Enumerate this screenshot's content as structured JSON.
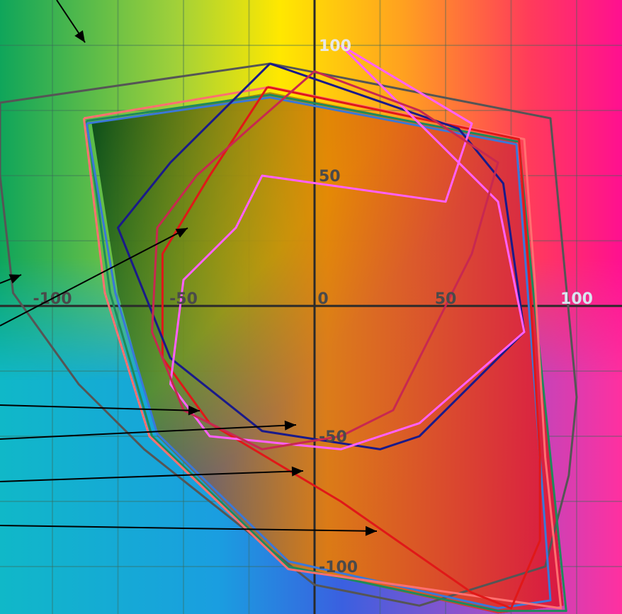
{
  "chart_data": {
    "type": "line",
    "title": "",
    "xlabel": "",
    "ylabel": "",
    "xlim": [
      -120,
      120
    ],
    "ylim": [
      -118,
      118
    ],
    "grid": true,
    "x_tick_labels": [
      {
        "value": -100,
        "label": "-100"
      },
      {
        "value": -50,
        "label": "-50"
      },
      {
        "value": 0,
        "label": "0"
      },
      {
        "value": 50,
        "label": "50"
      },
      {
        "value": 100,
        "label": "100"
      }
    ],
    "y_tick_labels": [
      {
        "value": 100,
        "label": "100"
      },
      {
        "value": 50,
        "label": "50"
      },
      {
        "value": -50,
        "label": "-50"
      },
      {
        "value": -100,
        "label": "-100"
      }
    ],
    "filled_gamut": {
      "color": "#1a3a80",
      "points": [
        [
          -85,
          70
        ],
        [
          -17,
          82
        ],
        [
          77,
          63
        ],
        [
          83,
          10
        ],
        [
          90,
          -58
        ],
        [
          95,
          -115
        ],
        [
          70,
          -118
        ],
        [
          -10,
          -100
        ],
        [
          -60,
          -50
        ],
        [
          -75,
          5
        ],
        [
          -85,
          70
        ]
      ]
    },
    "series": [
      {
        "color": "#555555",
        "points": [
          [
            -120,
            78
          ],
          [
            -17,
            93
          ],
          [
            90,
            72
          ],
          [
            100,
            -35
          ],
          [
            97,
            -65
          ],
          [
            88,
            -100
          ],
          [
            40,
            -115
          ],
          [
            0,
            -107
          ],
          [
            -65,
            -55
          ],
          [
            -90,
            -30
          ],
          [
            -115,
            5
          ],
          [
            -120,
            50
          ],
          [
            -120,
            78
          ]
        ]
      },
      {
        "color": "#1e8a5a",
        "points": [
          [
            -87,
            71
          ],
          [
            -17,
            81
          ],
          [
            78,
            63
          ],
          [
            83,
            10
          ],
          [
            90,
            -58
          ],
          [
            96,
            -117
          ],
          [
            70,
            -117
          ],
          [
            -10,
            -100
          ],
          [
            -62,
            -50
          ],
          [
            -78,
            5
          ],
          [
            -87,
            71
          ]
        ]
      },
      {
        "color": "#3a78d8",
        "points": [
          [
            -87,
            70
          ],
          [
            -17,
            80
          ],
          [
            77,
            62
          ],
          [
            81,
            10
          ],
          [
            86,
            -58
          ],
          [
            90,
            -113
          ],
          [
            70,
            -116
          ],
          [
            -10,
            -98
          ],
          [
            -60,
            -49
          ],
          [
            -76,
            5
          ],
          [
            -87,
            70
          ]
        ]
      },
      {
        "color": "#ff7070",
        "points": [
          [
            -88,
            72
          ],
          [
            -17,
            84
          ],
          [
            80,
            64
          ],
          [
            84,
            10
          ],
          [
            88,
            -58
          ],
          [
            94,
            -116
          ],
          [
            -10,
            -101
          ],
          [
            -63,
            -50
          ],
          [
            -80,
            5
          ],
          [
            -88,
            72
          ]
        ]
      },
      {
        "color": "#e01818",
        "points": [
          [
            -18,
            84
          ],
          [
            78,
            64
          ],
          [
            82,
            10
          ],
          [
            86,
            -58
          ],
          [
            86,
            -90
          ],
          [
            75,
            -116
          ],
          [
            60,
            -110
          ],
          [
            10,
            -75
          ],
          [
            -40,
            -45
          ],
          [
            -58,
            -20
          ],
          [
            -58,
            20
          ],
          [
            -40,
            50
          ],
          [
            -18,
            84
          ]
        ]
      },
      {
        "color": "#1a1a8a",
        "points": [
          [
            -17,
            93
          ],
          [
            55,
            68
          ],
          [
            72,
            47
          ],
          [
            80,
            -10
          ],
          [
            40,
            -50
          ],
          [
            25,
            -55
          ],
          [
            -20,
            -48
          ],
          [
            -55,
            -20
          ],
          [
            -75,
            30
          ],
          [
            -55,
            55
          ],
          [
            -17,
            93
          ]
        ]
      },
      {
        "color": "#ff60ff",
        "points": [
          [
            10,
            100
          ],
          [
            60,
            70
          ],
          [
            50,
            40
          ],
          [
            -20,
            50
          ],
          [
            -30,
            30
          ],
          [
            -50,
            10
          ],
          [
            -55,
            -30
          ],
          [
            -40,
            -50
          ],
          [
            10,
            -55
          ],
          [
            40,
            -45
          ],
          [
            80,
            -10
          ],
          [
            70,
            40
          ],
          [
            10,
            100
          ]
        ]
      },
      {
        "color": "#c82850",
        "points": [
          [
            -25,
            68
          ],
          [
            0,
            90
          ],
          [
            40,
            75
          ],
          [
            70,
            55
          ],
          [
            60,
            20
          ],
          [
            30,
            -40
          ],
          [
            10,
            -50
          ],
          [
            -20,
            -55
          ],
          [
            -50,
            -40
          ],
          [
            -62,
            -10
          ],
          [
            -60,
            30
          ],
          [
            -45,
            50
          ],
          [
            -25,
            68
          ]
        ]
      }
    ]
  }
}
